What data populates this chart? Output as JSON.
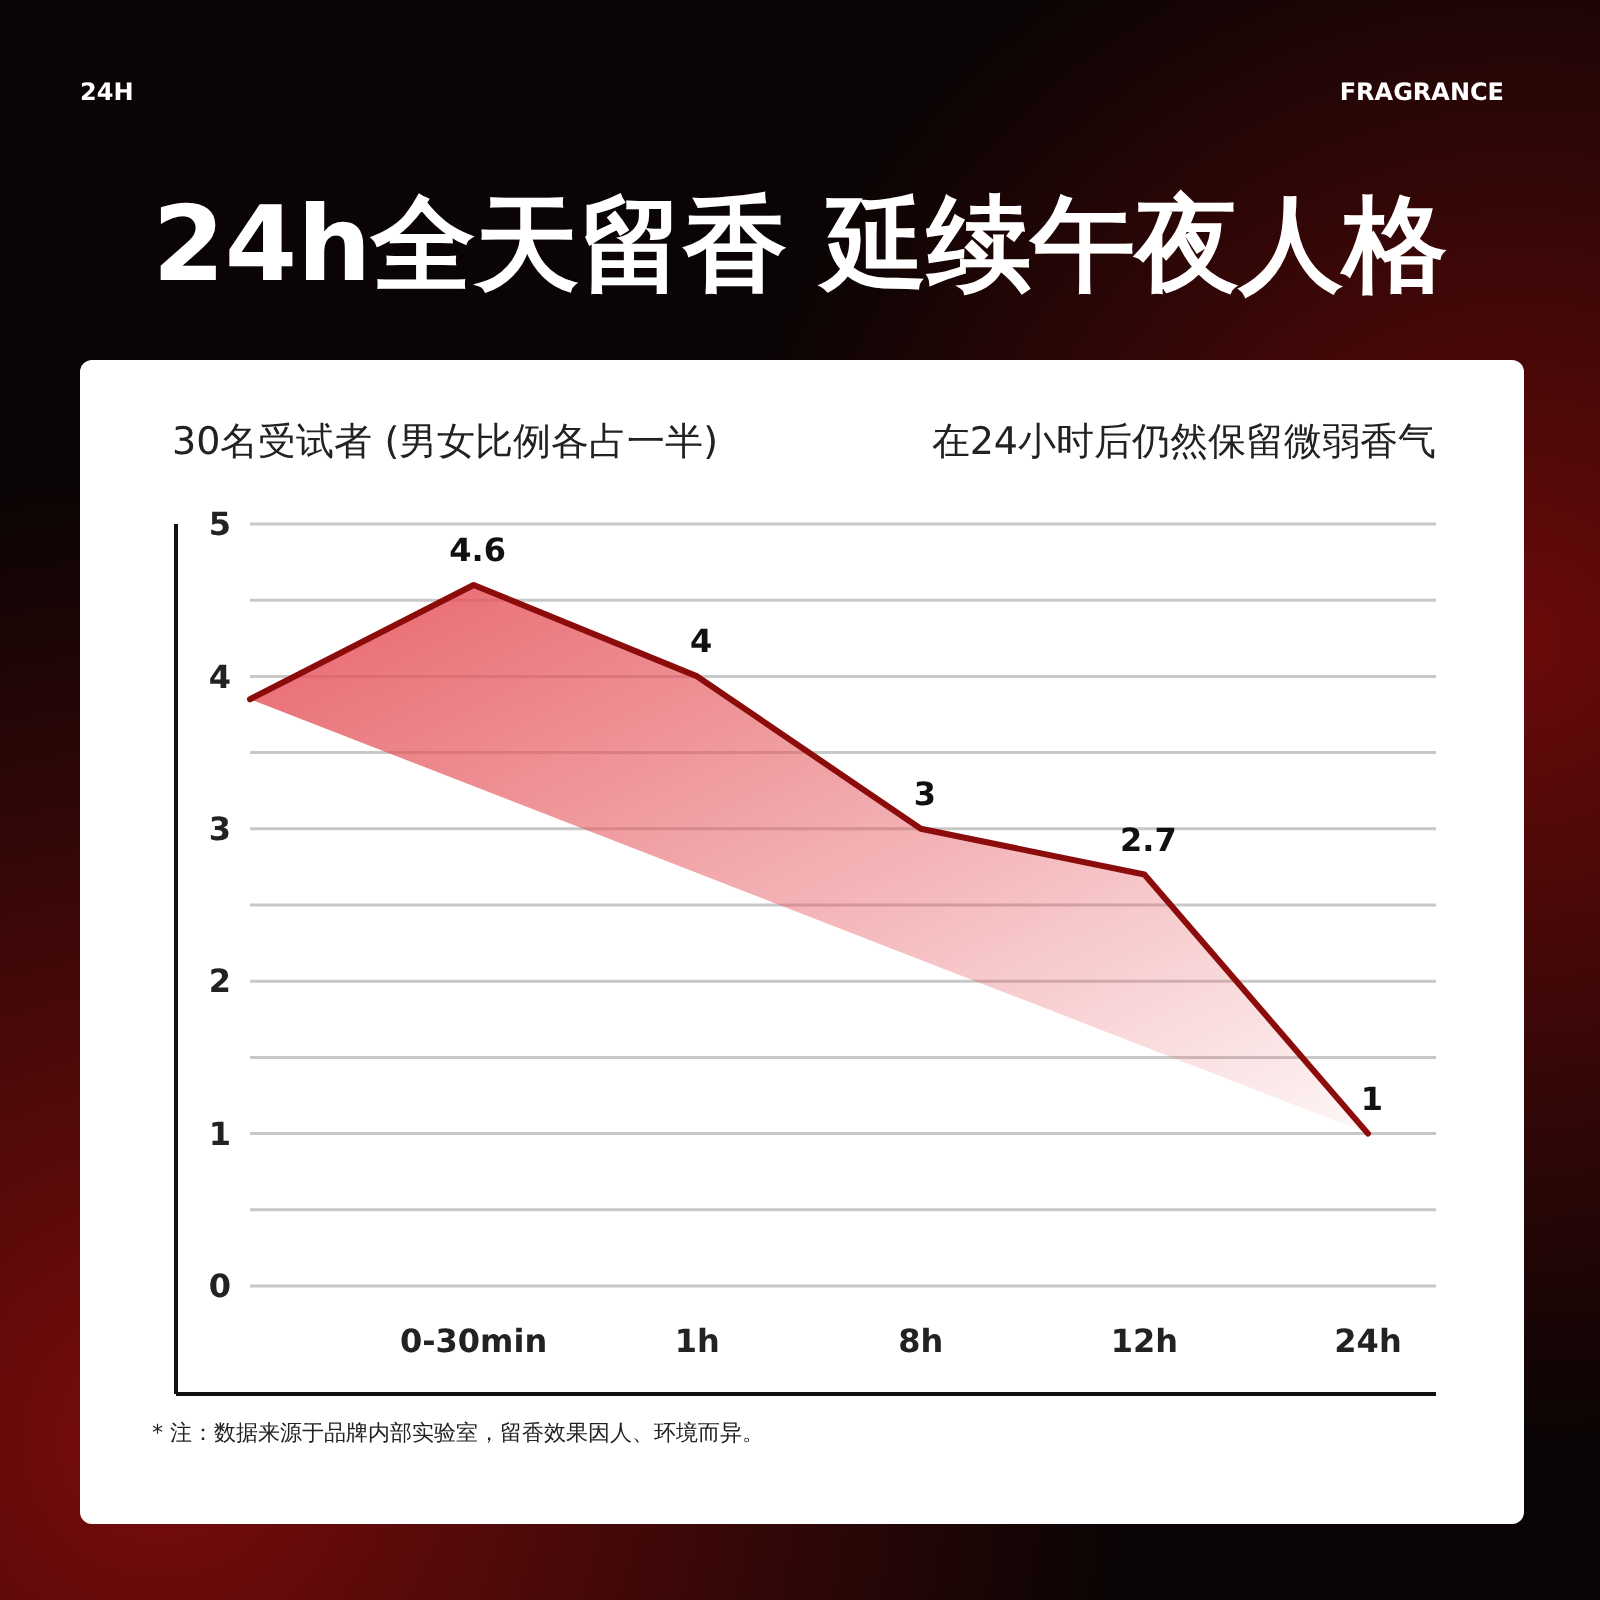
{
  "chart_data": {
    "type": "line",
    "title": "24h全天留香 延续午夜人格",
    "subtitle": "30名受试者 (男女比例各占一半)",
    "annotations": [
      "24H",
      "FRAGRANCE",
      "在24小时后仍然保留微弱香气",
      "* 注：数据来源于品牌内部实验室，留香效果因人、环境而异。"
    ],
    "categories": [
      null,
      "0-30min",
      "1h",
      "8h",
      "12h",
      "24h"
    ],
    "series": [
      {
        "color": "#8c0b0b",
        "values": [
          3.85,
          4.6,
          4,
          3,
          2.7,
          1
        ],
        "value_labels": [
          null,
          "4.6",
          "4",
          "3",
          "2.7",
          "1"
        ]
      }
    ],
    "ylim": [
      0,
      5
    ],
    "yticks": [
      0,
      {
        "value": 0.5,
        "label": null
      },
      1,
      {
        "value": 1.5,
        "label": null
      },
      2,
      {
        "value": 2.5,
        "label": null
      },
      3,
      {
        "value": 3.5,
        "label": null
      },
      4,
      {
        "value": 4.5,
        "label": null
      },
      5
    ],
    "grid": "y",
    "marker": "none",
    "line_style": "solid"
  }
}
